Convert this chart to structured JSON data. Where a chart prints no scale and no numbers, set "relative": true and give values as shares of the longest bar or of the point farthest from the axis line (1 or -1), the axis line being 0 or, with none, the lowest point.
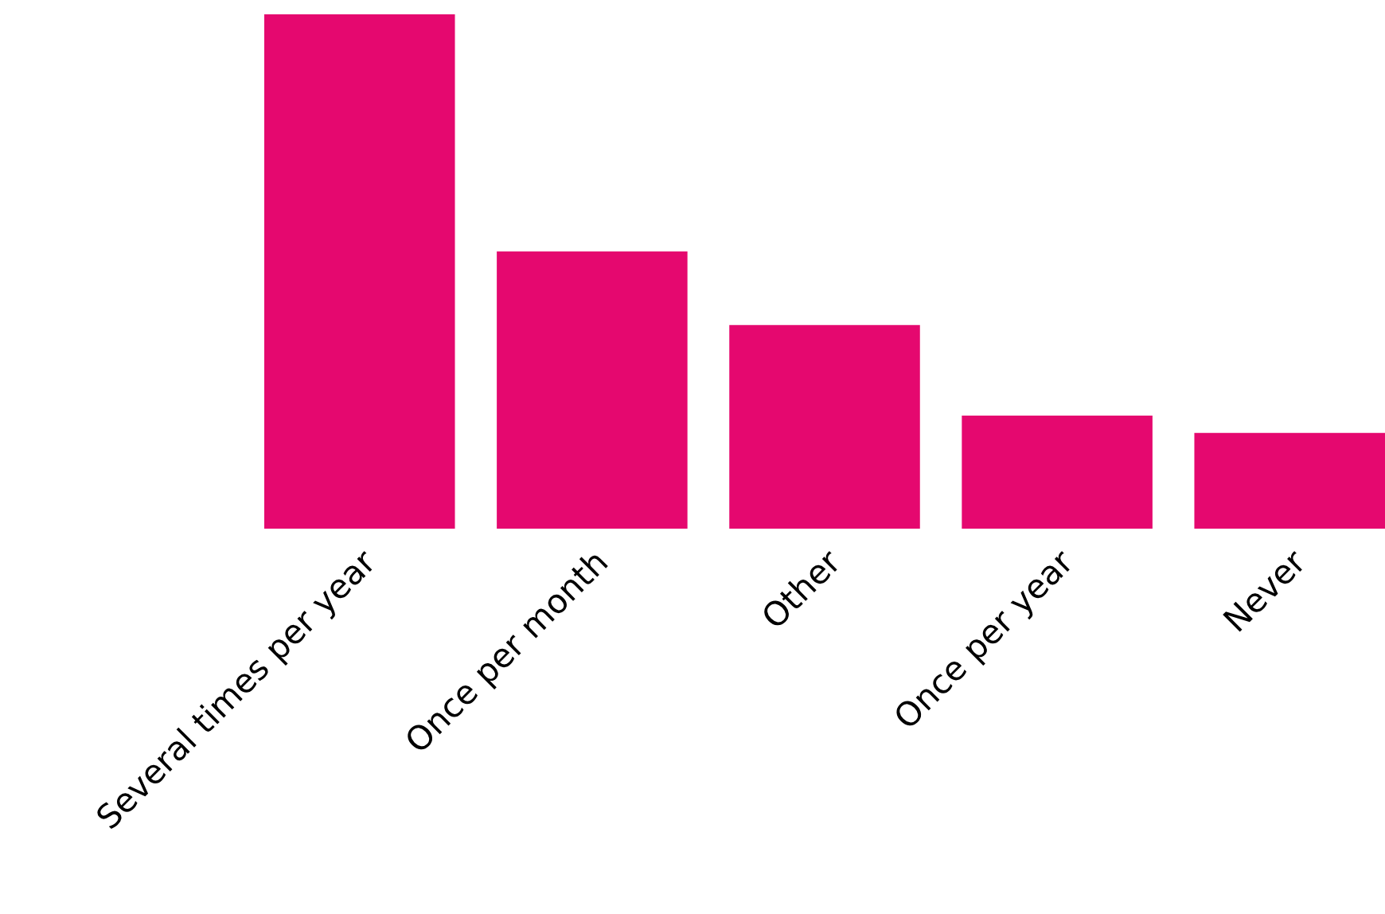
{
  "chart_data": {
    "type": "bar",
    "relative": true,
    "categories": [
      "Several times per year",
      "Once per month",
      "Other",
      "Once per year",
      "Never"
    ],
    "values": [
      1,
      0.539,
      0.396,
      0.22,
      0.186
    ],
    "color": "#e5086f",
    "grid": false,
    "legend": false
  }
}
